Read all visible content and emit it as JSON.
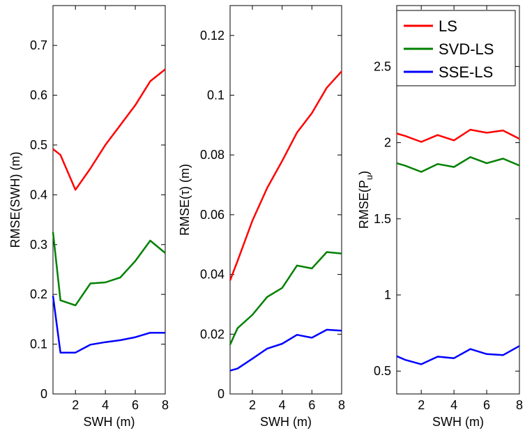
{
  "legend": [
    {
      "name": "LS",
      "color": "#ff0000"
    },
    {
      "name": "SVD-LS",
      "color": "#008000"
    },
    {
      "name": "SSE-LS",
      "color": "#0000ff"
    }
  ],
  "chart_data": [
    {
      "type": "line",
      "xlabel": "SWH (m)",
      "ylabel": "RMSE(SWH) (m)",
      "xlim": [
        0.5,
        8
      ],
      "ylim": [
        0,
        0.78
      ],
      "xticks": [
        "2",
        "4",
        "6",
        "8"
      ],
      "yticks": [
        "0",
        "0.1",
        "0.2",
        "0.3",
        "0.4",
        "0.5",
        "0.6",
        "0.7"
      ],
      "x": [
        0.5,
        1,
        2,
        3,
        4,
        5,
        6,
        7,
        8
      ],
      "series": [
        {
          "name": "LS",
          "color": "#ff0000",
          "values": [
            0.492,
            0.48,
            0.41,
            0.453,
            0.5,
            0.54,
            0.58,
            0.628,
            0.652
          ]
        },
        {
          "name": "SVD-LS",
          "color": "#008000",
          "values": [
            0.325,
            0.188,
            0.178,
            0.222,
            0.224,
            0.234,
            0.267,
            0.308,
            0.283
          ]
        },
        {
          "name": "SSE-LS",
          "color": "#0000ff",
          "values": [
            0.197,
            0.083,
            0.083,
            0.099,
            0.104,
            0.108,
            0.114,
            0.123,
            0.123
          ]
        }
      ]
    },
    {
      "type": "line",
      "xlabel": "SWH (m)",
      "ylabel": "RMSE(τ) (m)",
      "xlim": [
        0.5,
        8
      ],
      "ylim": [
        0,
        0.13
      ],
      "xticks": [
        "2",
        "4",
        "6",
        "8"
      ],
      "yticks": [
        "0",
        "0.02",
        "0.04",
        "0.06",
        "0.08",
        "0.1",
        "0.12"
      ],
      "x": [
        0.5,
        1,
        2,
        3,
        4,
        5,
        6,
        7,
        8
      ],
      "series": [
        {
          "name": "LS",
          "color": "#ff0000",
          "values": [
            0.038,
            0.0445,
            0.058,
            0.069,
            0.078,
            0.0875,
            0.094,
            0.1025,
            0.108
          ]
        },
        {
          "name": "SVD-LS",
          "color": "#008000",
          "values": [
            0.0165,
            0.022,
            0.0265,
            0.0325,
            0.0355,
            0.043,
            0.042,
            0.0475,
            0.047
          ]
        },
        {
          "name": "SSE-LS",
          "color": "#0000ff",
          "values": [
            0.0078,
            0.0085,
            0.0118,
            0.0152,
            0.0168,
            0.0198,
            0.0188,
            0.0215,
            0.0212
          ]
        }
      ]
    },
    {
      "type": "line",
      "xlabel": "SWH (m)",
      "ylabel": "RMSE(P",
      "ylabel_sub": "u",
      "ylabel_end": ")",
      "xlim": [
        0.5,
        8
      ],
      "ylim": [
        0.35,
        2.9
      ],
      "xticks": [
        "2",
        "4",
        "6",
        "8"
      ],
      "yticks": [
        "0.5",
        "1",
        "1.5",
        "2",
        "2.5"
      ],
      "x": [
        0.5,
        1,
        2,
        3,
        4,
        5,
        6,
        7,
        8
      ],
      "series": [
        {
          "name": "LS",
          "color": "#ff0000",
          "values": [
            2.06,
            2.045,
            2.005,
            2.05,
            2.015,
            2.085,
            2.065,
            2.08,
            2.025
          ]
        },
        {
          "name": "SVD-LS",
          "color": "#008000",
          "values": [
            1.865,
            1.85,
            1.808,
            1.86,
            1.84,
            1.905,
            1.865,
            1.895,
            1.85
          ]
        },
        {
          "name": "SSE-LS",
          "color": "#0000ff",
          "values": [
            0.598,
            0.575,
            0.545,
            0.595,
            0.585,
            0.645,
            0.612,
            0.605,
            0.665
          ]
        }
      ]
    }
  ]
}
